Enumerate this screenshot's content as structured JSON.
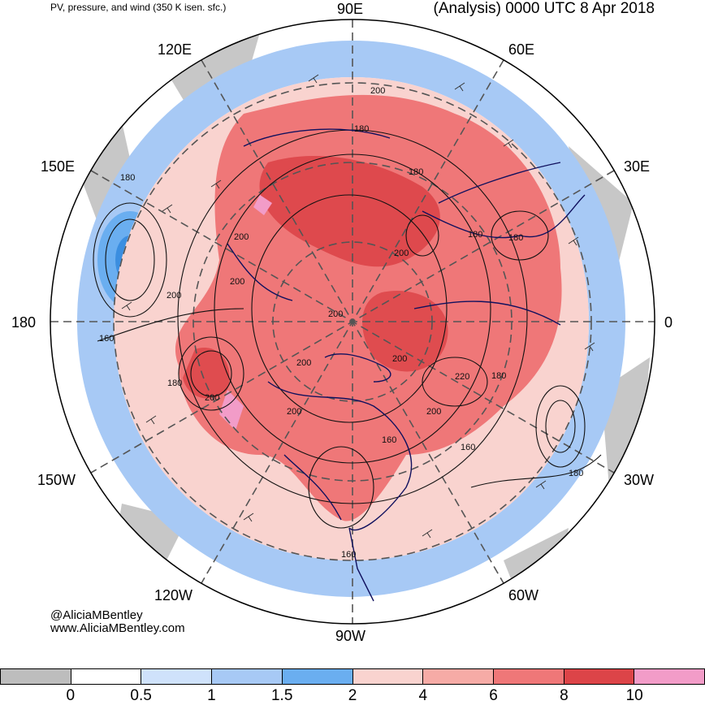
{
  "header": {
    "title_left": "PV, pressure, and wind (350 K isen. sfc.)",
    "title_right": "(Analysis) 0000 UTC 8 Apr 2018"
  },
  "longitude_labels": {
    "l90e": "90E",
    "l60e": "60E",
    "l30e": "30E",
    "l0": "0",
    "l30w": "30W",
    "l60w": "60W",
    "l90w": "90W",
    "l120w": "120W",
    "l150w": "150W",
    "l180": "180",
    "l150e": "150E",
    "l120e": "120E"
  },
  "contour_labels": [
    "200",
    "180",
    "180",
    "180",
    "200",
    "200",
    "180",
    "200",
    "200",
    "160",
    "200",
    "200",
    "200",
    "220",
    "180",
    "200",
    "160",
    "180",
    "160",
    "180",
    "180",
    "200",
    "200",
    "160"
  ],
  "credit": {
    "twitter": "@AliciaMBentley",
    "website": "www.AliciaMBentley.com"
  },
  "colorbar": {
    "colors": [
      "#bdbdbd",
      "#ffffff",
      "#cfe2fb",
      "#a7c9f5",
      "#6aaef0",
      "#f9d3cf",
      "#f6aba6",
      "#ef7778",
      "#dc4448",
      "#f29cc8"
    ],
    "ticks": [
      "0",
      "0.5",
      "1",
      "1.5",
      "2",
      "4",
      "6",
      "8",
      "10"
    ]
  }
}
